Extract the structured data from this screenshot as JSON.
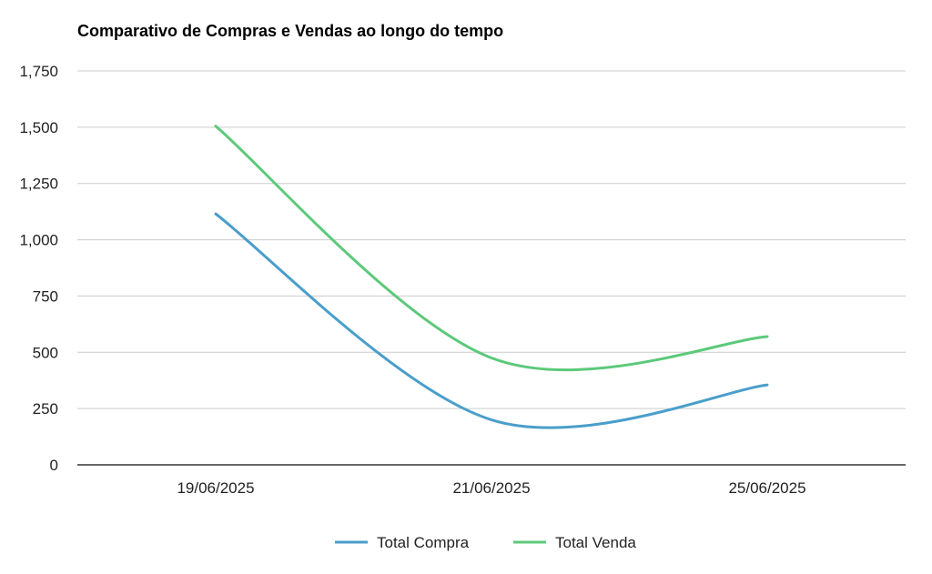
{
  "chart_data": {
    "type": "line",
    "title": "Comparativo de Compras e Vendas ao longo do tempo",
    "xlabel": "",
    "ylabel": "",
    "categories": [
      "19/06/2025",
      "21/06/2025",
      "25/06/2025"
    ],
    "ylim": [
      0,
      1750
    ],
    "yticks": [
      0,
      250,
      500,
      750,
      1000,
      1250,
      1500,
      1750
    ],
    "ytick_labels": [
      "0",
      "250",
      "500",
      "750",
      "1,000",
      "1,250",
      "1,500",
      "1,750"
    ],
    "grid": true,
    "legend_position": "bottom",
    "smooth": true,
    "series": [
      {
        "name": "Total Compra",
        "color": "#4a9ecb",
        "values": [
          1115,
          200,
          355
        ]
      },
      {
        "name": "Total Venda",
        "color": "#5cc97a",
        "values": [
          1505,
          475,
          570
        ]
      }
    ]
  }
}
